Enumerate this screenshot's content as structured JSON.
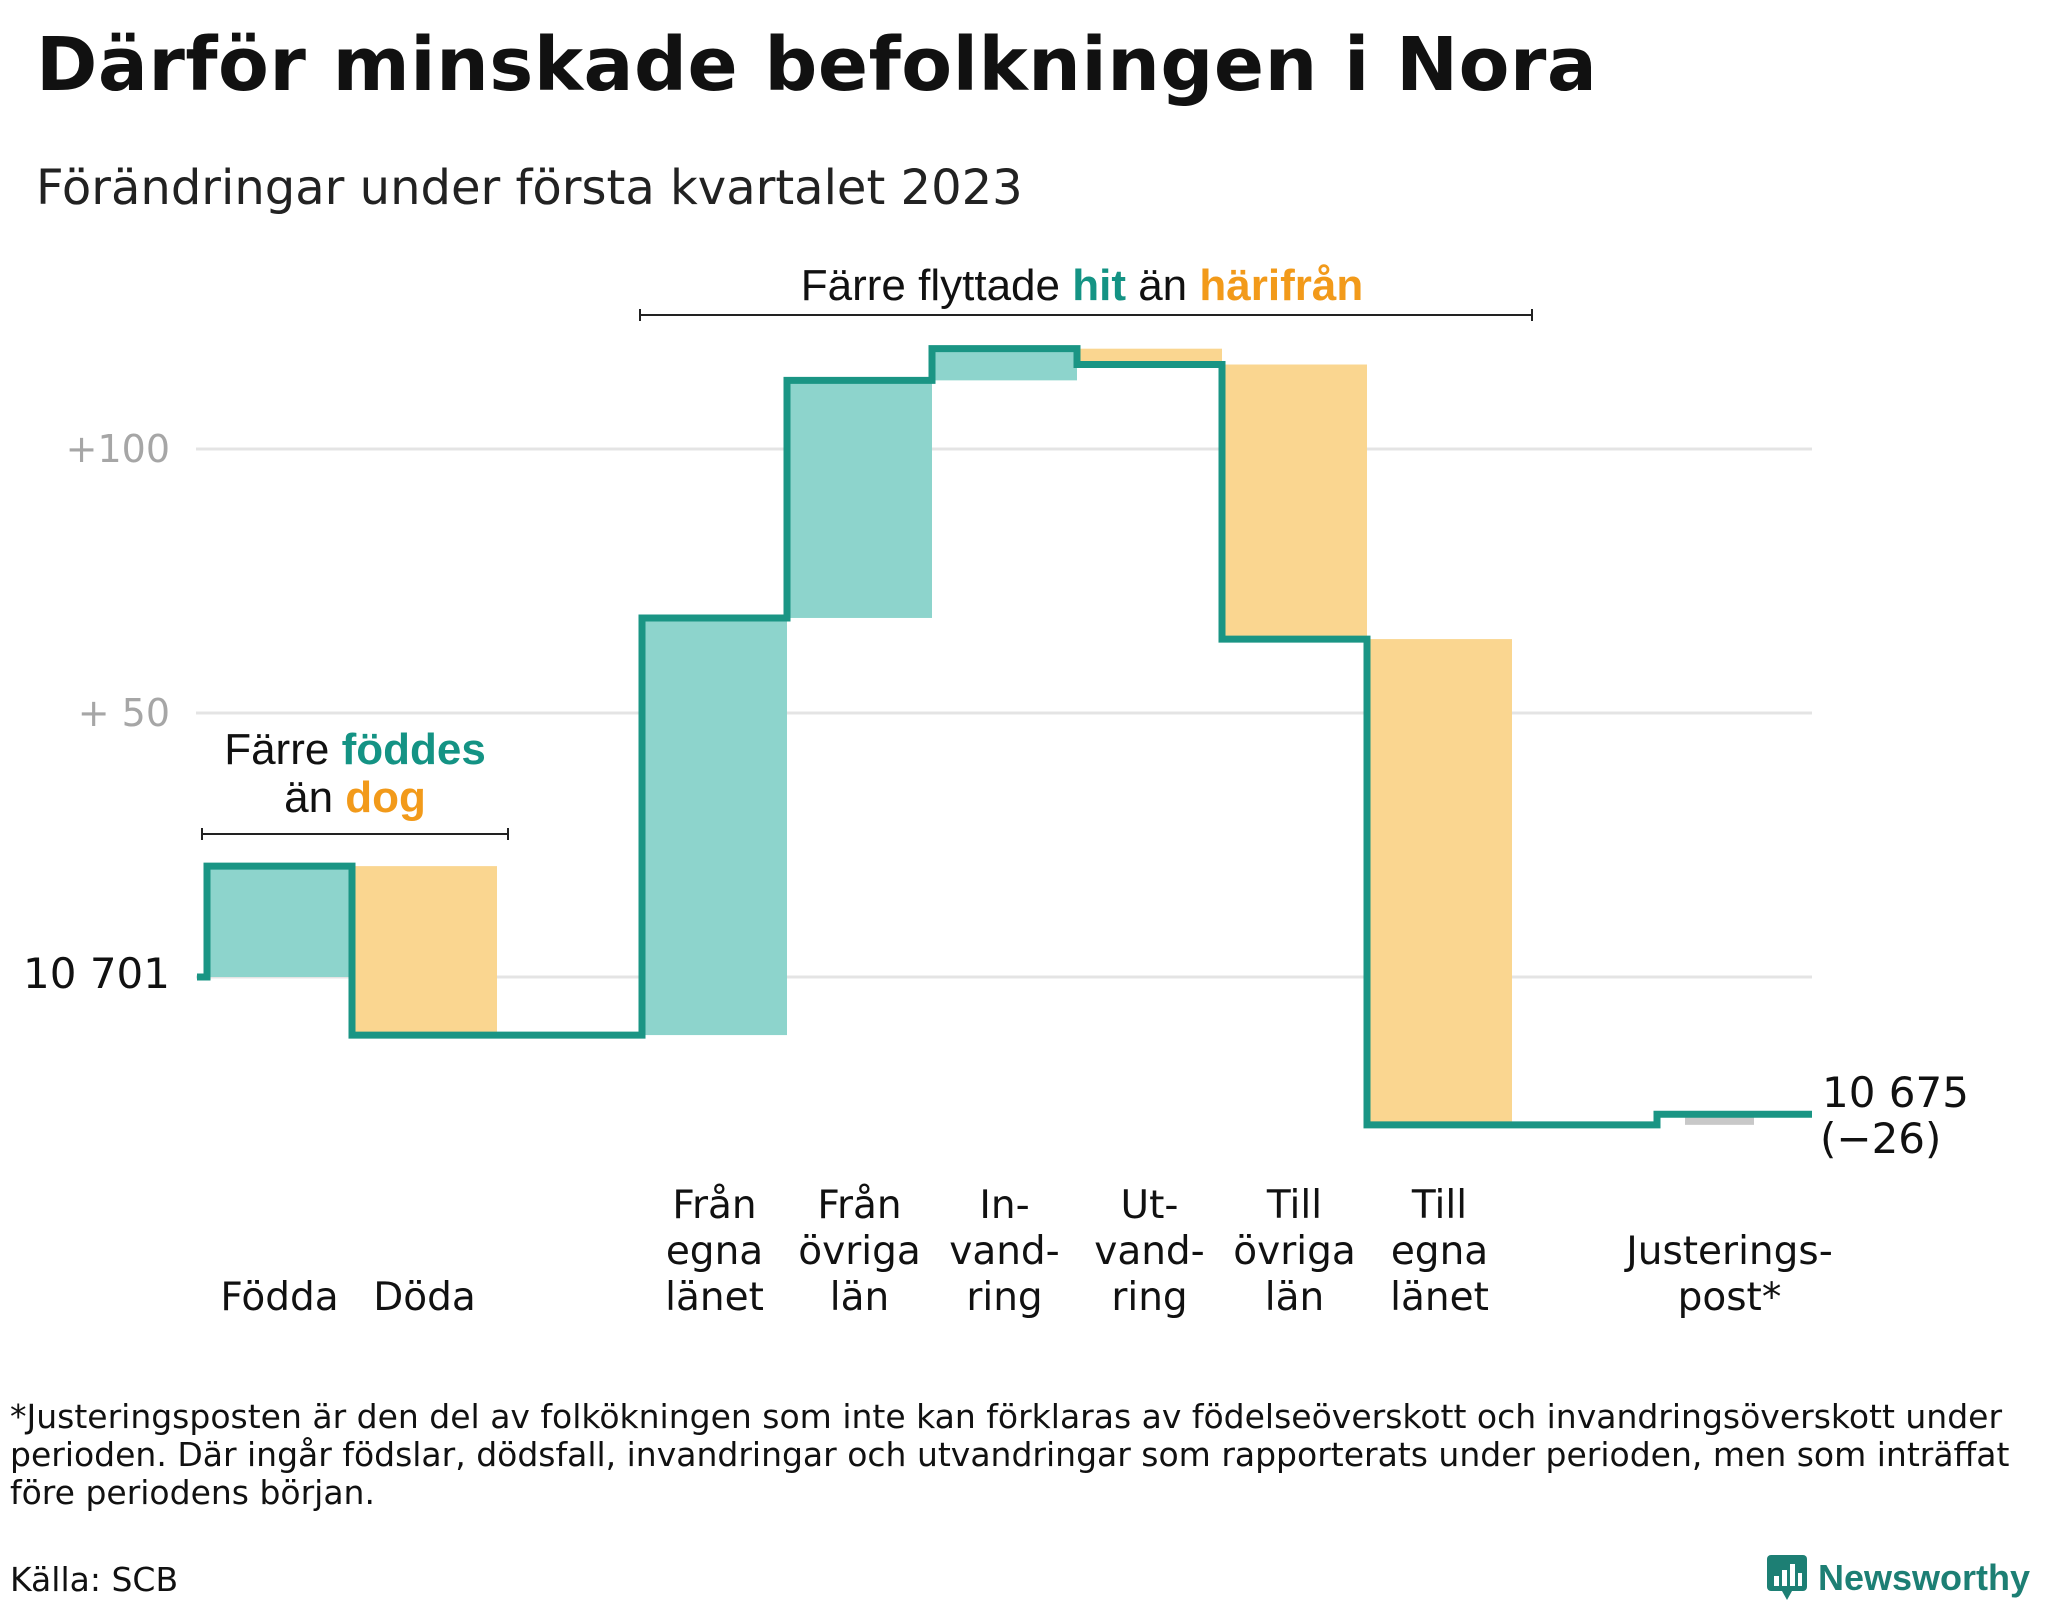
{
  "title": "Därför minskade befolkningen i Nora",
  "subtitle": "Förändringar under första kvartalet 2023",
  "colors": {
    "inflow": "#8dd4cc",
    "outflow": "#fad690",
    "adjustment": "#c8c8c8",
    "line": "#1a9584",
    "gridline": "#e4e4e4",
    "teal_text": "#149384",
    "orange_text": "#f29a1a"
  },
  "annotations": {
    "birth": {
      "line1_a": "Färre ",
      "line1_b": "föddes",
      "line2_a": "än ",
      "line2_b": "dog"
    },
    "migration": {
      "part1": "Färre flyttade ",
      "part2": "hit",
      "part3": " än ",
      "part4": "härifrån"
    }
  },
  "chart_data": {
    "type": "waterfall",
    "start_value": 10701,
    "start_label": "10 701",
    "end_value": 10675,
    "end_label": "10 675",
    "end_change_label": "(−26)",
    "y_ticks": [
      {
        "value": 100,
        "label": "+100"
      },
      {
        "value": 50,
        "label": "+ 50"
      }
    ],
    "steps": [
      {
        "category": "Födda",
        "label_lines": [
          "Födda"
        ],
        "change": 21,
        "kind": "inflow"
      },
      {
        "category": "Döda",
        "label_lines": [
          "Döda"
        ],
        "change": -32,
        "kind": "outflow"
      },
      {
        "category": "Från egna länet",
        "label_lines": [
          "Från",
          "egna",
          "länet"
        ],
        "change": 79,
        "kind": "inflow"
      },
      {
        "category": "Från övriga län",
        "label_lines": [
          "Från",
          "övriga",
          "län"
        ],
        "change": 45,
        "kind": "inflow"
      },
      {
        "category": "Invandring",
        "label_lines": [
          "In-",
          "vand-",
          "ring"
        ],
        "change": 6,
        "kind": "inflow"
      },
      {
        "category": "Utvandring",
        "label_lines": [
          "Ut-",
          "vand-",
          "ring"
        ],
        "change": -3,
        "kind": "outflow"
      },
      {
        "category": "Till övriga län",
        "label_lines": [
          "Till",
          "övriga",
          "län"
        ],
        "change": -52,
        "kind": "outflow"
      },
      {
        "category": "Till egna länet",
        "label_lines": [
          "Till",
          "egna",
          "länet"
        ],
        "change": -92,
        "kind": "outflow"
      },
      {
        "category": "Justeringspost",
        "label_lines": [
          "Justerings-",
          "post*"
        ],
        "change": 2,
        "kind": "adjustment"
      }
    ]
  },
  "footnote": "*Justeringsposten är den del av folkökningen som inte kan förklaras av födelseöverskott och invandringsöverskott under perioden. Där ingår födslar, dödsfall, invandringar och utvandringar som rapporterats under perioden, men som inträffat före periodens början.",
  "source": "Källa: SCB",
  "brand": {
    "name": "Newsworthy",
    "icon": "newsworthy-logo-icon"
  }
}
